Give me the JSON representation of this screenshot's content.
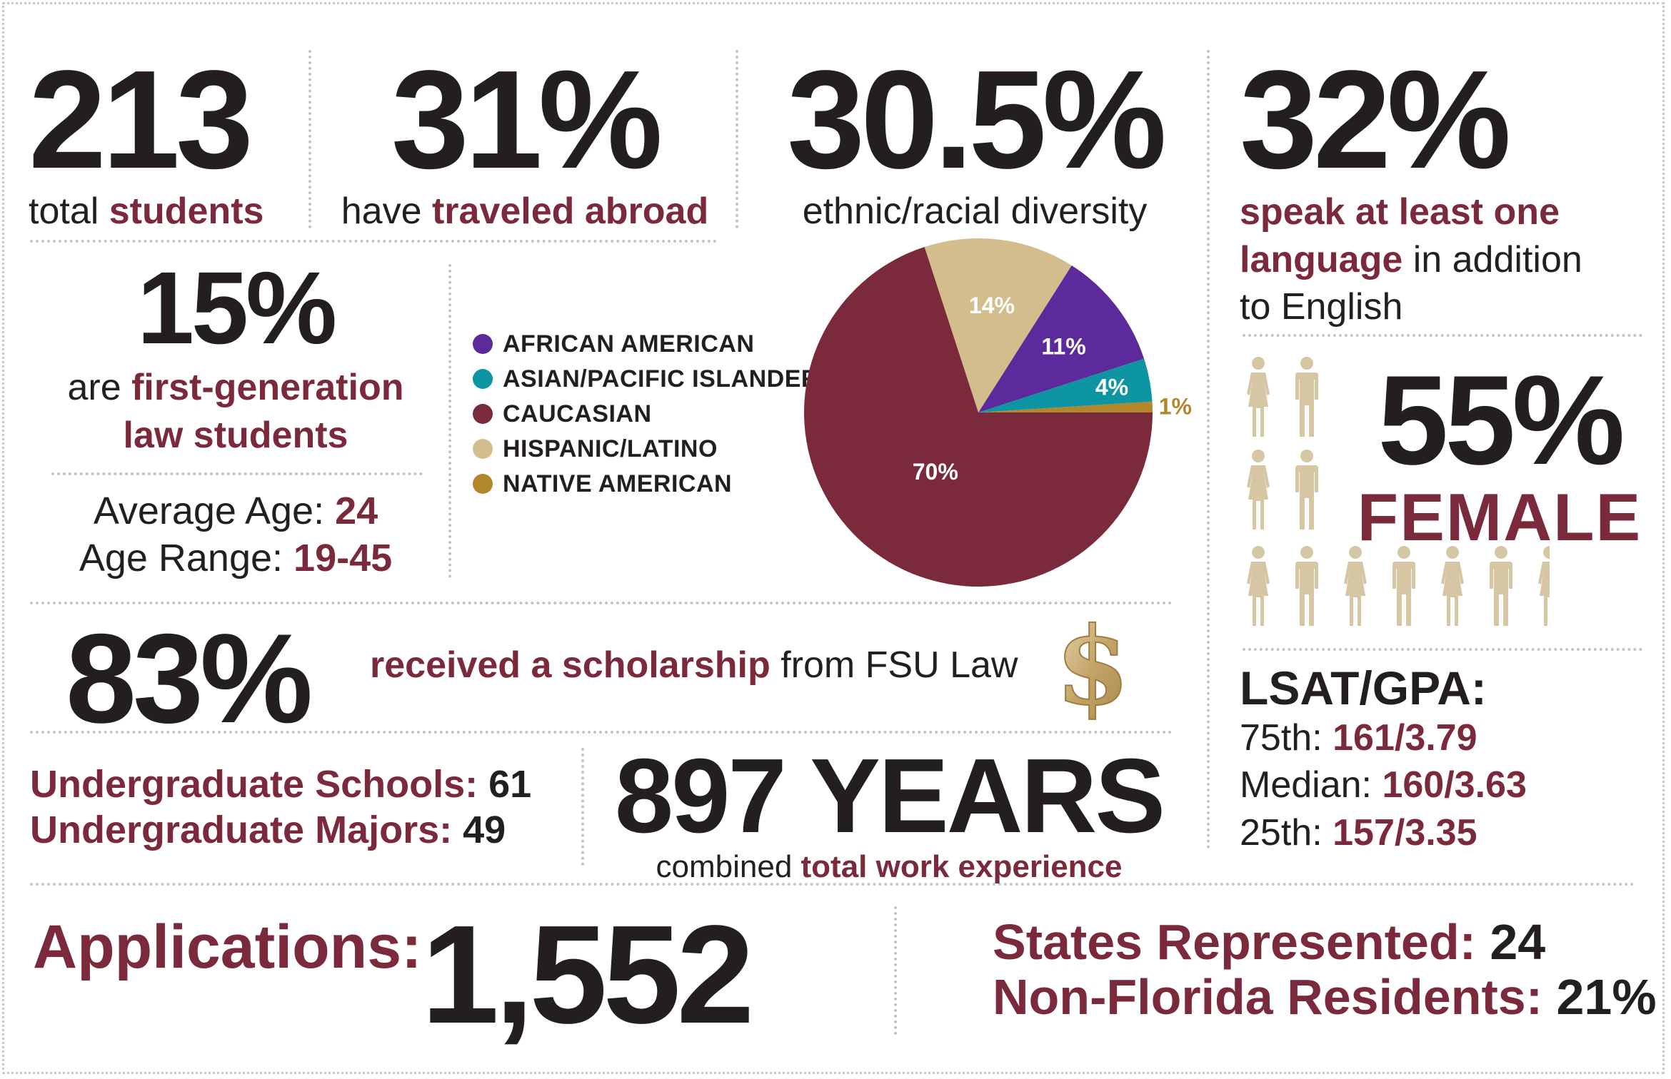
{
  "colors": {
    "maroon": "#7b2a3b",
    "gold_tan": "#d3bd8d",
    "purple": "#5c2a9b",
    "teal": "#0e95a3",
    "native_gold": "#b2862b",
    "person_icon": "#d6c6a3"
  },
  "stats": {
    "total_students": {
      "value": "213",
      "caption_plain": "total",
      "caption_accent": "students"
    },
    "traveled_abroad": {
      "value": "31%",
      "caption_plain": "have",
      "caption_accent": "traveled abroad"
    },
    "diversity": {
      "value": "30.5%",
      "caption": "ethnic/racial diversity"
    },
    "languages": {
      "value": "32%",
      "line1_accent": "speak at least one",
      "line2_accent": "language",
      "line2_plain": "in addition",
      "line3_plain": "to English"
    },
    "first_gen": {
      "value": "15%",
      "line1_plain": "are",
      "line1_accent": "first-generation",
      "line2_accent": "law students"
    },
    "age": {
      "average_label": "Average Age:",
      "average_value": "24",
      "range_label": "Age Range:",
      "range_value": "19-45"
    },
    "female": {
      "value": "55%",
      "label": "FEMALE"
    },
    "scholarship": {
      "value": "83%",
      "caption_accent": "received a scholarship",
      "caption_plain": "from FSU Law",
      "icon": "dollar-sign-icon"
    },
    "lsat_gpa": {
      "title": "LSAT/GPA:",
      "rows": [
        {
          "label": "75th:",
          "value": "161/3.79"
        },
        {
          "label": "Median:",
          "value": "160/3.63"
        },
        {
          "label": "25th:",
          "value": "157/3.35"
        }
      ]
    },
    "undergrad": {
      "schools_label": "Undergraduate Schools:",
      "schools_value": "61",
      "majors_label": "Undergraduate Majors:",
      "majors_value": "49"
    },
    "work_experience": {
      "value": "897 YEARS",
      "caption_plain": "combined",
      "caption_accent": "total work experience"
    },
    "applications": {
      "label": "Applications:",
      "value": "1,552"
    },
    "states": {
      "label": "States Represented:",
      "value": "24"
    },
    "non_florida": {
      "label": "Non-Florida Residents:",
      "value": "21%"
    }
  },
  "chart_data": {
    "type": "pie",
    "categories": [
      "AFRICAN AMERICAN",
      "ASIAN/PACIFIC ISLANDER",
      "CAUCASIAN",
      "HISPANIC/LATINO",
      "NATIVE AMERICAN"
    ],
    "values": [
      11,
      4,
      70,
      14,
      1
    ],
    "labels": [
      "11%",
      "4%",
      "70%",
      "14%",
      "1%"
    ],
    "colors": [
      "#5c2a9b",
      "#0e95a3",
      "#7b2a3b",
      "#d3bd8d",
      "#b2862b"
    ],
    "legend_position": "left"
  }
}
